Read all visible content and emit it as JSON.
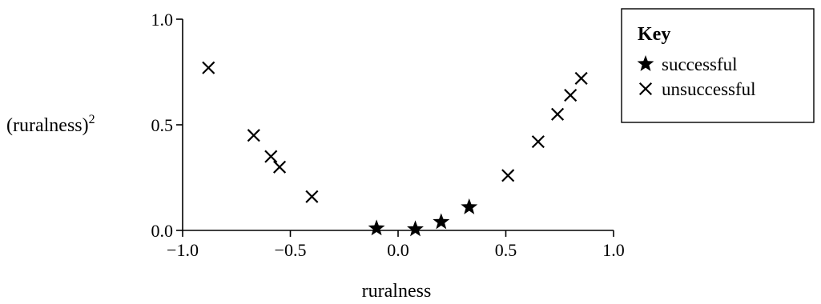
{
  "chart_data": {
    "type": "scatter",
    "title": "",
    "xlabel": "ruralness",
    "ylabel": "(ruralness)",
    "ylabel_superscript": "2",
    "xlim": [
      -1.0,
      1.0
    ],
    "ylim": [
      0.0,
      1.0
    ],
    "x_ticks": [
      -1.0,
      -0.5,
      0.0,
      0.5,
      1.0
    ],
    "x_tick_labels": [
      "−1.0",
      "−0.5",
      "0.0",
      "0.5",
      "1.0"
    ],
    "y_ticks": [
      0.0,
      0.5,
      1.0
    ],
    "y_tick_labels": [
      "0.0",
      "0.5",
      "1.0"
    ],
    "grid": false,
    "legend": {
      "title": "Key",
      "placement": "top-right",
      "entries": [
        {
          "label": "successful",
          "marker": "star"
        },
        {
          "label": "unsuccessful",
          "marker": "cross"
        }
      ]
    },
    "series": [
      {
        "name": "successful",
        "marker": "star",
        "points": [
          {
            "x": -0.1,
            "y": 0.01
          },
          {
            "x": 0.08,
            "y": 0.006
          },
          {
            "x": 0.2,
            "y": 0.04
          },
          {
            "x": 0.33,
            "y": 0.11
          }
        ]
      },
      {
        "name": "unsuccessful",
        "marker": "cross",
        "points": [
          {
            "x": -0.88,
            "y": 0.77
          },
          {
            "x": -0.67,
            "y": 0.45
          },
          {
            "x": -0.59,
            "y": 0.35
          },
          {
            "x": -0.55,
            "y": 0.3
          },
          {
            "x": -0.4,
            "y": 0.16
          },
          {
            "x": 0.51,
            "y": 0.26
          },
          {
            "x": 0.65,
            "y": 0.42
          },
          {
            "x": 0.74,
            "y": 0.55
          },
          {
            "x": 0.8,
            "y": 0.64
          },
          {
            "x": 0.85,
            "y": 0.72
          }
        ]
      }
    ]
  }
}
